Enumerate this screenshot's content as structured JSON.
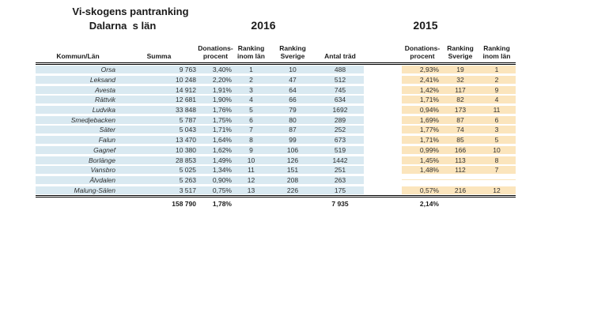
{
  "title": "Vi-skogens pantranking",
  "subtitle": "Dalarna  s län",
  "year_left": "2016",
  "year_right": "2015",
  "colors": {
    "section_2016_bg": "#d9e9f1",
    "section_2015_bg": "#fbe5bd",
    "border": "#000000",
    "text": "#303030"
  },
  "headers": {
    "kommun": "Kommun/Län",
    "summa": "Summa",
    "donations_2016": "Donations-\nprocent",
    "ranking_inom_lan_2016": "Ranking\ninom län",
    "ranking_sverige_2016": "Ranking\nSverige",
    "antal_trad": "Antal träd",
    "donations_2015": "Donations-\nprocent",
    "ranking_sverige_2015": "Ranking\nSverige",
    "ranking_inom_lan_2015": "Ranking\ninom län"
  },
  "rows": [
    {
      "kommun": "Orsa",
      "summa": "9 763",
      "donations_2016": "3,40%",
      "ranking_inom_lan_2016": "1",
      "ranking_sverige_2016": "10",
      "antal_trad": "488",
      "donations_2015": "2,93%",
      "ranking_sverige_2015": "19",
      "ranking_inom_lan_2015": "1"
    },
    {
      "kommun": "Leksand",
      "summa": "10 248",
      "donations_2016": "2,20%",
      "ranking_inom_lan_2016": "2",
      "ranking_sverige_2016": "47",
      "antal_trad": "512",
      "donations_2015": "2,41%",
      "ranking_sverige_2015": "32",
      "ranking_inom_lan_2015": "2"
    },
    {
      "kommun": "Avesta",
      "summa": "14 912",
      "donations_2016": "1,91%",
      "ranking_inom_lan_2016": "3",
      "ranking_sverige_2016": "64",
      "antal_trad": "745",
      "donations_2015": "1,42%",
      "ranking_sverige_2015": "117",
      "ranking_inom_lan_2015": "9"
    },
    {
      "kommun": "Rättvik",
      "summa": "12 681",
      "donations_2016": "1,90%",
      "ranking_inom_lan_2016": "4",
      "ranking_sverige_2016": "66",
      "antal_trad": "634",
      "donations_2015": "1,71%",
      "ranking_sverige_2015": "82",
      "ranking_inom_lan_2015": "4"
    },
    {
      "kommun": "Ludvika",
      "summa": "33 848",
      "donations_2016": "1,76%",
      "ranking_inom_lan_2016": "5",
      "ranking_sverige_2016": "79",
      "antal_trad": "1692",
      "donations_2015": "0,94%",
      "ranking_sverige_2015": "173",
      "ranking_inom_lan_2015": "11"
    },
    {
      "kommun": "Smedjebacken",
      "summa": "5 787",
      "donations_2016": "1,75%",
      "ranking_inom_lan_2016": "6",
      "ranking_sverige_2016": "80",
      "antal_trad": "289",
      "donations_2015": "1,69%",
      "ranking_sverige_2015": "87",
      "ranking_inom_lan_2015": "6"
    },
    {
      "kommun": "Säter",
      "summa": "5 043",
      "donations_2016": "1,71%",
      "ranking_inom_lan_2016": "7",
      "ranking_sverige_2016": "87",
      "antal_trad": "252",
      "donations_2015": "1,77%",
      "ranking_sverige_2015": "74",
      "ranking_inom_lan_2015": "3"
    },
    {
      "kommun": "Falun",
      "summa": "13 470",
      "donations_2016": "1,64%",
      "ranking_inom_lan_2016": "8",
      "ranking_sverige_2016": "99",
      "antal_trad": "673",
      "donations_2015": "1,71%",
      "ranking_sverige_2015": "85",
      "ranking_inom_lan_2015": "5"
    },
    {
      "kommun": "Gagnef",
      "summa": "10 380",
      "donations_2016": "1,62%",
      "ranking_inom_lan_2016": "9",
      "ranking_sverige_2016": "106",
      "antal_trad": "519",
      "donations_2015": "0,99%",
      "ranking_sverige_2015": "166",
      "ranking_inom_lan_2015": "10"
    },
    {
      "kommun": "Borlänge",
      "summa": "28 853",
      "donations_2016": "1,49%",
      "ranking_inom_lan_2016": "10",
      "ranking_sverige_2016": "126",
      "antal_trad": "1442",
      "donations_2015": "1,45%",
      "ranking_sverige_2015": "113",
      "ranking_inom_lan_2015": "8"
    },
    {
      "kommun": "Vansbro",
      "summa": "5 025",
      "donations_2016": "1,34%",
      "ranking_inom_lan_2016": "11",
      "ranking_sverige_2016": "151",
      "antal_trad": "251",
      "donations_2015": "1,48%",
      "ranking_sverige_2015": "112",
      "ranking_inom_lan_2015": "7"
    },
    {
      "kommun": "Älvdalen",
      "summa": "5 263",
      "donations_2016": "0,90%",
      "ranking_inom_lan_2016": "12",
      "ranking_sverige_2016": "208",
      "antal_trad": "263",
      "donations_2015": "",
      "ranking_sverige_2015": "",
      "ranking_inom_lan_2015": ""
    },
    {
      "kommun": "Malung-Sälen",
      "summa": "3 517",
      "donations_2016": "0,75%",
      "ranking_inom_lan_2016": "13",
      "ranking_sverige_2016": "226",
      "antal_trad": "175",
      "donations_2015": "0,57%",
      "ranking_sverige_2015": "216",
      "ranking_inom_lan_2015": "12"
    }
  ],
  "totals": {
    "summa": "158 790",
    "donations_2016": "1,78%",
    "antal_trad": "7 935",
    "donations_2015": "2,14%"
  }
}
